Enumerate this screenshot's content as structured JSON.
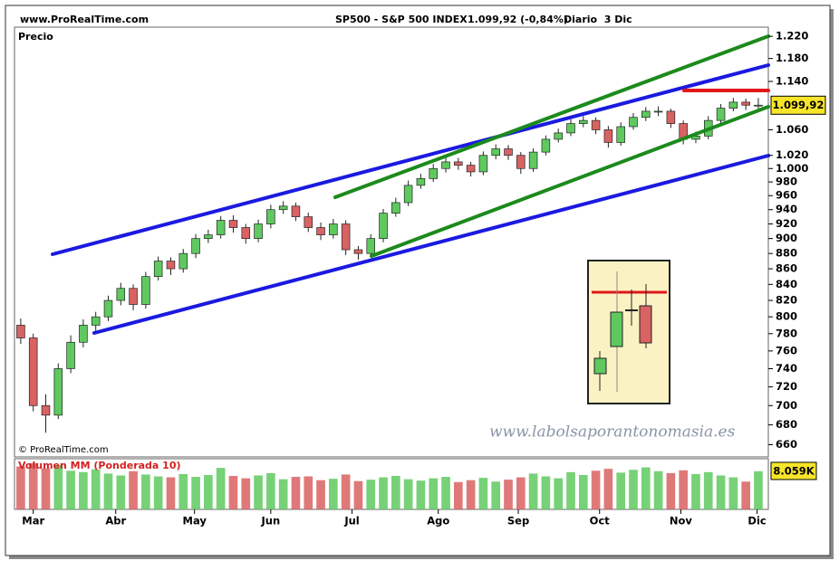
{
  "header": {
    "site": "www.ProRealTime.com",
    "symbol": "SP500 - S&P 500 INDEX",
    "quote": "1.099,92 (-0,84%)",
    "period": "Diario  3 Dic"
  },
  "chart_data": {
    "type": "candlestick",
    "panel_label": "Precio",
    "copyright": "© ProRealTime.com",
    "watermark": "www.labolsaporantonomasia.es",
    "log_scale": true,
    "up_color": "#5fc95f",
    "down_color": "#d96262",
    "xlim": [
      -0.5,
      59.8
    ],
    "xticks": [
      {
        "value": 1,
        "label": "Mar"
      },
      {
        "value": 7.6,
        "label": "Abr"
      },
      {
        "value": 13.9,
        "label": "May"
      },
      {
        "value": 20,
        "label": "Jun"
      },
      {
        "value": 26.5,
        "label": "Jul"
      },
      {
        "value": 33.4,
        "label": "Ago"
      },
      {
        "value": 39.8,
        "label": "Sep"
      },
      {
        "value": 46.3,
        "label": "Oct"
      },
      {
        "value": 52.8,
        "label": "Nov"
      },
      {
        "value": 58.9,
        "label": "Dic"
      }
    ],
    "ylim": [
      648,
      1237
    ],
    "yticks": [
      {
        "value": 1220,
        "label": "1.220"
      },
      {
        "value": 1180,
        "label": "1.180"
      },
      {
        "value": 1140,
        "label": "1.140"
      },
      {
        "value": 1060,
        "label": "1.060"
      },
      {
        "value": 1020,
        "label": "1.020"
      },
      {
        "value": 1000,
        "label": "1.000"
      },
      980,
      960,
      940,
      920,
      900,
      880,
      860,
      840,
      820,
      800,
      780,
      760,
      740,
      720,
      700,
      680,
      660
    ],
    "last_price": {
      "value": 1099.92,
      "label": "1.099,92"
    },
    "open": [
      790,
      775,
      700,
      690,
      740,
      770,
      790,
      800,
      820,
      835,
      815,
      850,
      870,
      860,
      880,
      900,
      905,
      925,
      915,
      900,
      920,
      940,
      945,
      930,
      915,
      905,
      920,
      885,
      880,
      900,
      935,
      950,
      975,
      985,
      1000,
      1010,
      1005,
      995,
      1020,
      1030,
      1020,
      1000,
      1025,
      1045,
      1055,
      1070,
      1075,
      1060,
      1040,
      1065,
      1080,
      1090,
      1090,
      1070,
      1045,
      1050,
      1075,
      1095,
      1105,
      1100
    ],
    "high": [
      798,
      780,
      712,
      746,
      778,
      797,
      806,
      826,
      842,
      840,
      856,
      876,
      875,
      886,
      906,
      912,
      931,
      932,
      920,
      926,
      947,
      952,
      950,
      936,
      922,
      927,
      925,
      890,
      906,
      941,
      957,
      982,
      992,
      1007,
      1017,
      1016,
      1010,
      1026,
      1037,
      1036,
      1025,
      1031,
      1051,
      1062,
      1077,
      1082,
      1080,
      1066,
      1072,
      1087,
      1097,
      1098,
      1094,
      1075,
      1057,
      1082,
      1102,
      1112,
      1111,
      1112
    ],
    "low": [
      768,
      694,
      672,
      686,
      735,
      764,
      783,
      795,
      814,
      808,
      810,
      845,
      852,
      855,
      874,
      894,
      900,
      908,
      893,
      895,
      914,
      934,
      924,
      909,
      898,
      900,
      878,
      872,
      875,
      895,
      930,
      945,
      970,
      980,
      994,
      998,
      988,
      990,
      1014,
      1013,
      992,
      995,
      1020,
      1040,
      1050,
      1064,
      1053,
      1032,
      1035,
      1060,
      1074,
      1082,
      1063,
      1037,
      1039,
      1045,
      1070,
      1090,
      1092,
      1093
    ],
    "close": [
      775,
      700,
      690,
      740,
      770,
      790,
      800,
      820,
      835,
      815,
      850,
      870,
      860,
      880,
      900,
      905,
      925,
      915,
      900,
      920,
      940,
      945,
      930,
      915,
      905,
      920,
      885,
      880,
      900,
      935,
      950,
      975,
      985,
      1000,
      1010,
      1005,
      995,
      1020,
      1030,
      1020,
      1000,
      1025,
      1045,
      1055,
      1070,
      1075,
      1060,
      1040,
      1065,
      1080,
      1090,
      1090,
      1070,
      1045,
      1050,
      1075,
      1095,
      1105,
      1100,
      1100
    ],
    "volume_panel": {
      "label": "Volumen MM (Ponderada 10)",
      "last_label": "8.059K",
      "vlim": [
        0,
        10.75
      ],
      "values": [
        9.1,
        9.8,
        8.7,
        9.4,
        8.2,
        7.9,
        8.5,
        7.6,
        7.2,
        8.1,
        7.4,
        7.0,
        6.8,
        7.5,
        6.9,
        7.3,
        8.8,
        7.1,
        6.6,
        7.2,
        7.7,
        6.4,
        6.9,
        7.0,
        6.2,
        6.5,
        7.4,
        6.0,
        6.3,
        6.8,
        7.1,
        6.4,
        6.1,
        6.6,
        6.9,
        5.8,
        6.2,
        6.7,
        5.9,
        6.3,
        6.8,
        7.6,
        7.0,
        6.6,
        7.9,
        7.3,
        8.2,
        8.6,
        7.8,
        8.4,
        8.9,
        8.1,
        7.7,
        8.3,
        7.5,
        7.9,
        7.2,
        6.8,
        5.9,
        8.1
      ]
    }
  }
}
